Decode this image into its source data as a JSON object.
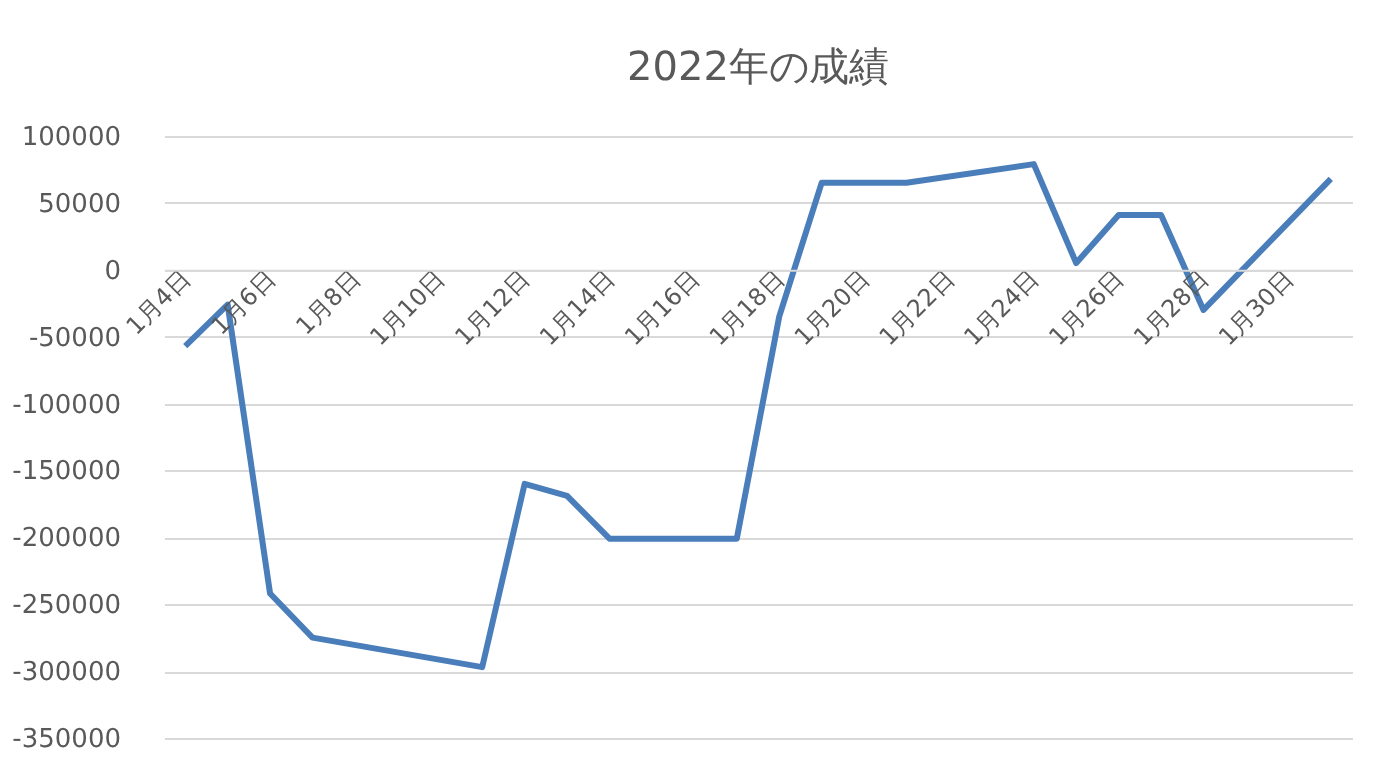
{
  "chart_data": {
    "type": "line",
    "title": "2022年の成績",
    "x": [
      "2022-01-04",
      "2022-01-05",
      "2022-01-06",
      "2022-01-07",
      "2022-01-11",
      "2022-01-12",
      "2022-01-13",
      "2022-01-14",
      "2022-01-17",
      "2022-01-18",
      "2022-01-19",
      "2022-01-21",
      "2022-01-24",
      "2022-01-25",
      "2022-01-26",
      "2022-01-27",
      "2022-01-28",
      "2022-01-31"
    ],
    "series": [
      {
        "color": "#4a7ebb",
        "values": [
          -57000,
          -26000,
          -242000,
          -275000,
          -297000,
          -160000,
          -169000,
          -201000,
          -201000,
          -35000,
          65000,
          65000,
          79000,
          5000,
          41000,
          41000,
          -30000,
          68000
        ]
      }
    ],
    "xlim": [
      "2022-01-03T12:00",
      "2022-01-31T12:00"
    ],
    "xticks": [
      {
        "value": "2022-01-04",
        "label": "1月4日"
      },
      {
        "value": "2022-01-06",
        "label": "1月6日"
      },
      {
        "value": "2022-01-08",
        "label": "1月8日"
      },
      {
        "value": "2022-01-10",
        "label": "1月10日"
      },
      {
        "value": "2022-01-12",
        "label": "1月12日"
      },
      {
        "value": "2022-01-14",
        "label": "1月14日"
      },
      {
        "value": "2022-01-16",
        "label": "1月16日"
      },
      {
        "value": "2022-01-18",
        "label": "1月18日"
      },
      {
        "value": "2022-01-20",
        "label": "1月20日"
      },
      {
        "value": "2022-01-22",
        "label": "1月22日"
      },
      {
        "value": "2022-01-24",
        "label": "1月24日"
      },
      {
        "value": "2022-01-26",
        "label": "1月26日"
      },
      {
        "value": "2022-01-28",
        "label": "1月28日"
      },
      {
        "value": "2022-01-30",
        "label": "1月30日"
      }
    ],
    "ylim": [
      -350000,
      100000
    ],
    "yticks": [
      -350000,
      -300000,
      -250000,
      -200000,
      -150000,
      -100000,
      -50000,
      0,
      50000,
      100000
    ],
    "grid": "y",
    "legend": false,
    "marker": "none",
    "line_style": "solid"
  }
}
